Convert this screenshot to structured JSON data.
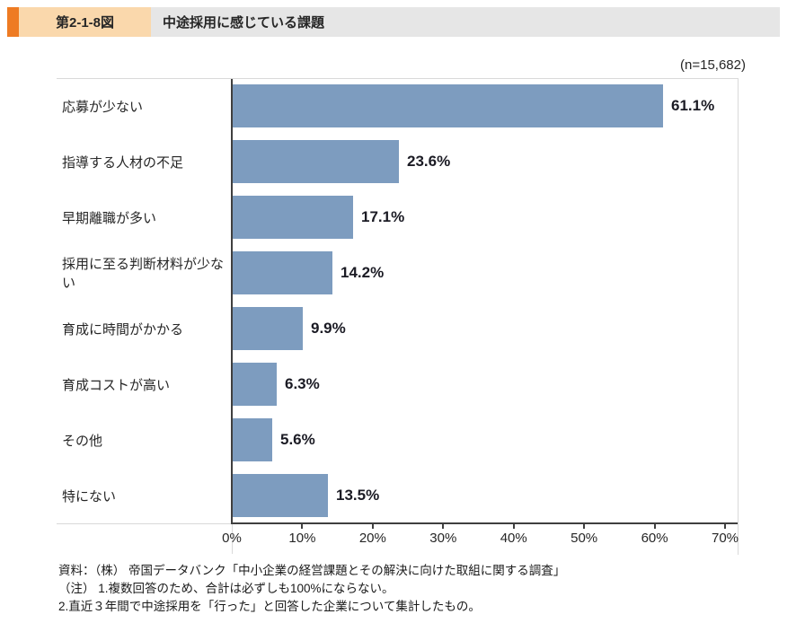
{
  "header": {
    "fig_label": "第2-1-8図",
    "title": "中途採用に感じている課題"
  },
  "chart": {
    "n_label": "(n=15,682)"
  },
  "chart_data": {
    "type": "bar",
    "orientation": "horizontal",
    "title": "中途採用に感じている課題",
    "n": "(n=15,682)",
    "categories": [
      "応募が少ない",
      "指導する人材の不足",
      "早期離職が多い",
      "採用に至る判断材料が少ない",
      "育成に時間がかかる",
      "育成コストが高い",
      "その他",
      "特にない"
    ],
    "values": [
      61.1,
      23.6,
      17.1,
      14.2,
      9.9,
      6.3,
      5.6,
      13.5
    ],
    "value_labels": [
      "61.1%",
      "23.6%",
      "17.1%",
      "14.2%",
      "9.9%",
      "6.3%",
      "5.6%",
      "13.5%"
    ],
    "xlim": [
      0,
      70
    ],
    "x_tick_labels": [
      "0%",
      "10%",
      "20%",
      "30%",
      "40%",
      "50%",
      "60%",
      "70%"
    ],
    "xlabel": "",
    "ylabel": "",
    "grid": false,
    "legend": false,
    "bar_color": "#7D9CBF",
    "axis_color": "#3f3f3f",
    "frame_color": "#D9D9D9"
  },
  "footer": {
    "source": "資料：（株） 帝国データバンク「中小企業の経営課題とその解決に向けた取組に関する調査」",
    "note1": "（注） 1.複数回答のため、合計は必ずしも100%にならない。",
    "note2": "2.直近３年間で中途採用を「行った」と回答した企業について集計したもの。"
  }
}
